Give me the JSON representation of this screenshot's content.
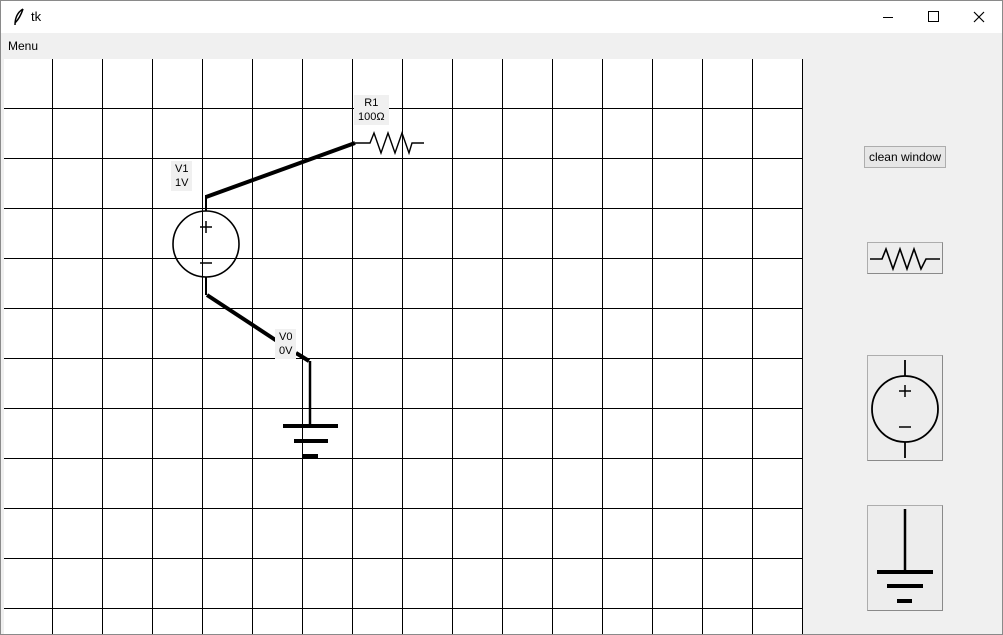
{
  "window": {
    "title": "tk"
  },
  "menubar": {
    "items": [
      {
        "label": "Menu"
      }
    ]
  },
  "circuit": {
    "resistor": {
      "name": "R1",
      "value": "100Ω"
    },
    "voltage_source": {
      "name": "V1",
      "value": "1V"
    },
    "node": {
      "name": "V0",
      "value": "0V"
    }
  },
  "sidebar": {
    "clean_button_label": "clean window",
    "tools": [
      "resistor-icon",
      "voltage-source-icon",
      "ground-icon"
    ]
  }
}
